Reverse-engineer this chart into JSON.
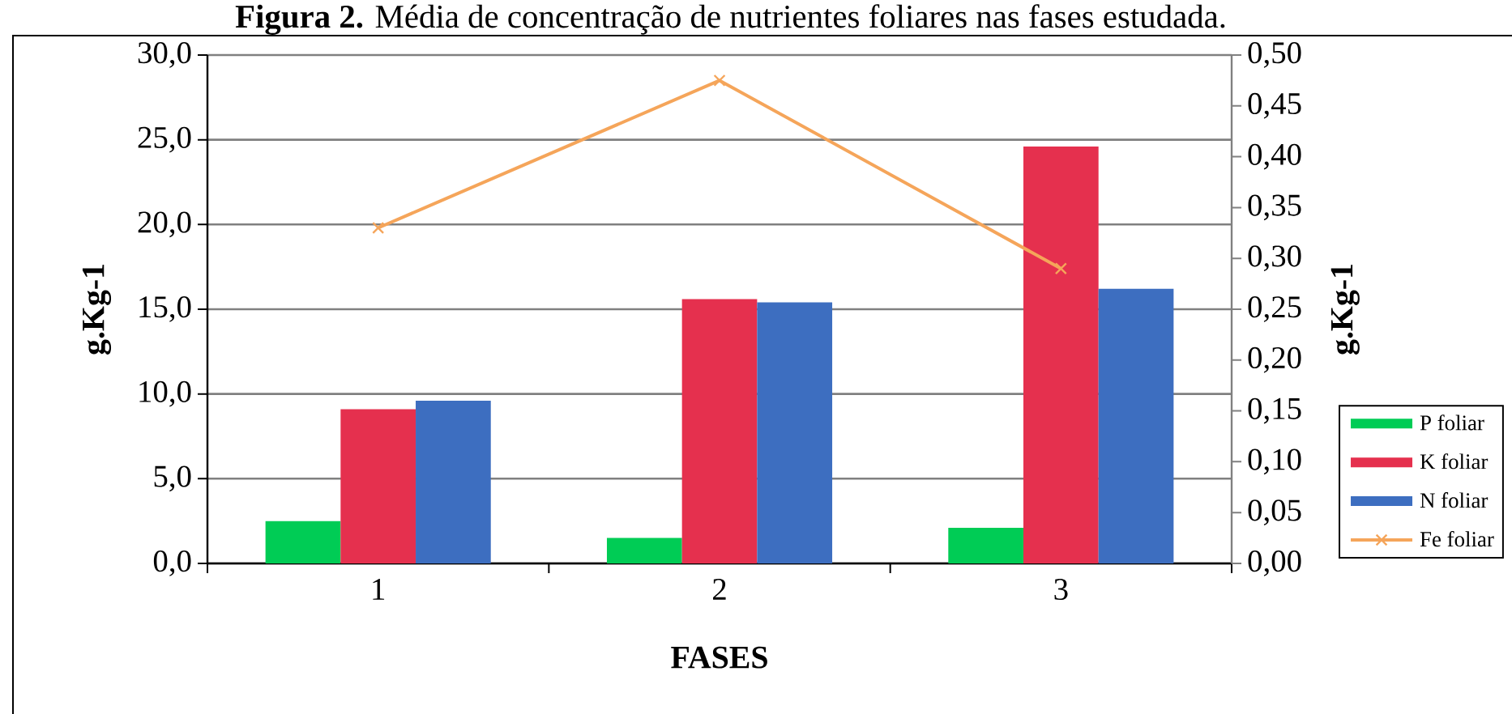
{
  "chart_data": {
    "type": "bar",
    "title": "**Figura 2.** Média de concentração de nutrientes foliares nas fases estudada.",
    "xlabel": "FASES",
    "ylabel": "g.Kg-1",
    "y2label": "g.Kg-1",
    "categories": [
      "1",
      "2",
      "3"
    ],
    "series": [
      {
        "name": "P foliar",
        "color": "#00cc55",
        "values": [
          2.5,
          1.5,
          2.1
        ]
      },
      {
        "name": "K foliar",
        "color": "#e5304e",
        "values": [
          9.1,
          15.6,
          24.6
        ]
      },
      {
        "name": "N foliar",
        "color": "#3d6ec0",
        "values": [
          9.6,
          15.4,
          16.2
        ]
      },
      {
        "name": "Fe foliar",
        "type": "line",
        "axis": "y2",
        "color": "#f5a55a",
        "values": [
          0.33,
          0.475,
          0.29
        ],
        "marker": "cross",
        "line_style": "solid"
      }
    ],
    "ylim": [
      0,
      30
    ],
    "yticks": [
      {
        "value": 0,
        "label": "0,0"
      },
      {
        "value": 5,
        "label": "5,0"
      },
      {
        "value": 10,
        "label": "10,0"
      },
      {
        "value": 15,
        "label": "15,0"
      },
      {
        "value": 20,
        "label": "20,0"
      },
      {
        "value": 25,
        "label": "25,0"
      },
      {
        "value": 30,
        "label": "30,0"
      }
    ],
    "y2lim": [
      0,
      0.5
    ],
    "y2ticks": [
      {
        "value": 0,
        "label": "0,00"
      },
      {
        "value": 0.05,
        "label": "0,05"
      },
      {
        "value": 0.1,
        "label": "0,10"
      },
      {
        "value": 0.15,
        "label": "0,15"
      },
      {
        "value": 0.2,
        "label": "0,20"
      },
      {
        "value": 0.25,
        "label": "0,25"
      },
      {
        "value": 0.3,
        "label": "0,30"
      },
      {
        "value": 0.35,
        "label": "0,35"
      },
      {
        "value": 0.4,
        "label": "0,40"
      },
      {
        "value": 0.45,
        "label": "0,45"
      },
      {
        "value": 0.5,
        "label": "0,50"
      }
    ],
    "grid": "y",
    "legend": "bottom right"
  }
}
